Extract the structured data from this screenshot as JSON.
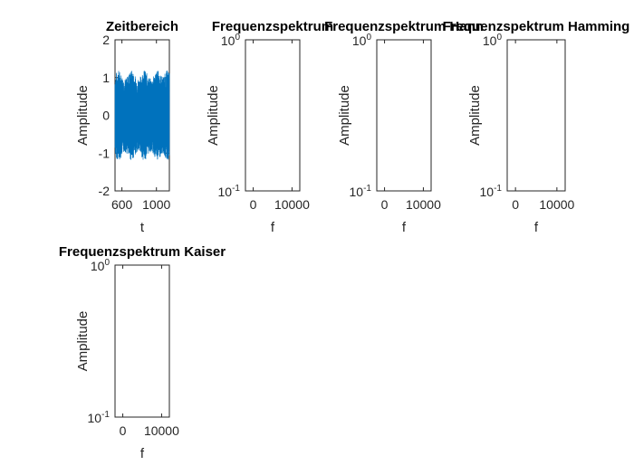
{
  "chart_data": [
    {
      "type": "line",
      "title": "Zeitbereich",
      "xlabel": "t",
      "ylabel": "Amplitude",
      "xlim": [
        520,
        1150
      ],
      "ylim": [
        -2,
        2
      ],
      "xticks": [
        600,
        1000
      ],
      "yticks": [
        -2,
        -1,
        0,
        1,
        2
      ],
      "series_color": "#0072BD",
      "signal": {
        "x_start": 520,
        "x_end": 1150,
        "carrier_peak": 0.95,
        "envelope_extra": 0.25,
        "envelope_bumps": [
          560,
          710,
          860,
          1010,
          1130
        ]
      }
    },
    {
      "type": "line",
      "title": "Frequenzspektrum",
      "xlabel": "f",
      "ylabel": "Amplitude",
      "xlim": [
        -2000,
        12000
      ],
      "ylim": [
        0.1,
        1
      ],
      "yscale": "log",
      "xticks": [
        0,
        10000
      ],
      "series": []
    },
    {
      "type": "line",
      "title": "Frequenzspektrum Hann",
      "xlabel": "f",
      "ylabel": "Amplitude",
      "xlim": [
        -2000,
        12000
      ],
      "ylim": [
        0.1,
        1
      ],
      "yscale": "log",
      "xticks": [
        0,
        10000
      ],
      "series": []
    },
    {
      "type": "line",
      "title": "Frequenzspektrum Hamming",
      "xlabel": "f",
      "ylabel": "Amplitude",
      "xlim": [
        -2000,
        12000
      ],
      "ylim": [
        0.1,
        1
      ],
      "yscale": "log",
      "xticks": [
        0,
        10000
      ],
      "series": []
    },
    {
      "type": "line",
      "title": "Frequenzspektrum Kaiser",
      "xlabel": "f",
      "ylabel": "Amplitude",
      "xlim": [
        -2000,
        12000
      ],
      "ylim": [
        0.1,
        1
      ],
      "yscale": "log",
      "xticks": [
        0,
        10000
      ],
      "series": []
    }
  ]
}
